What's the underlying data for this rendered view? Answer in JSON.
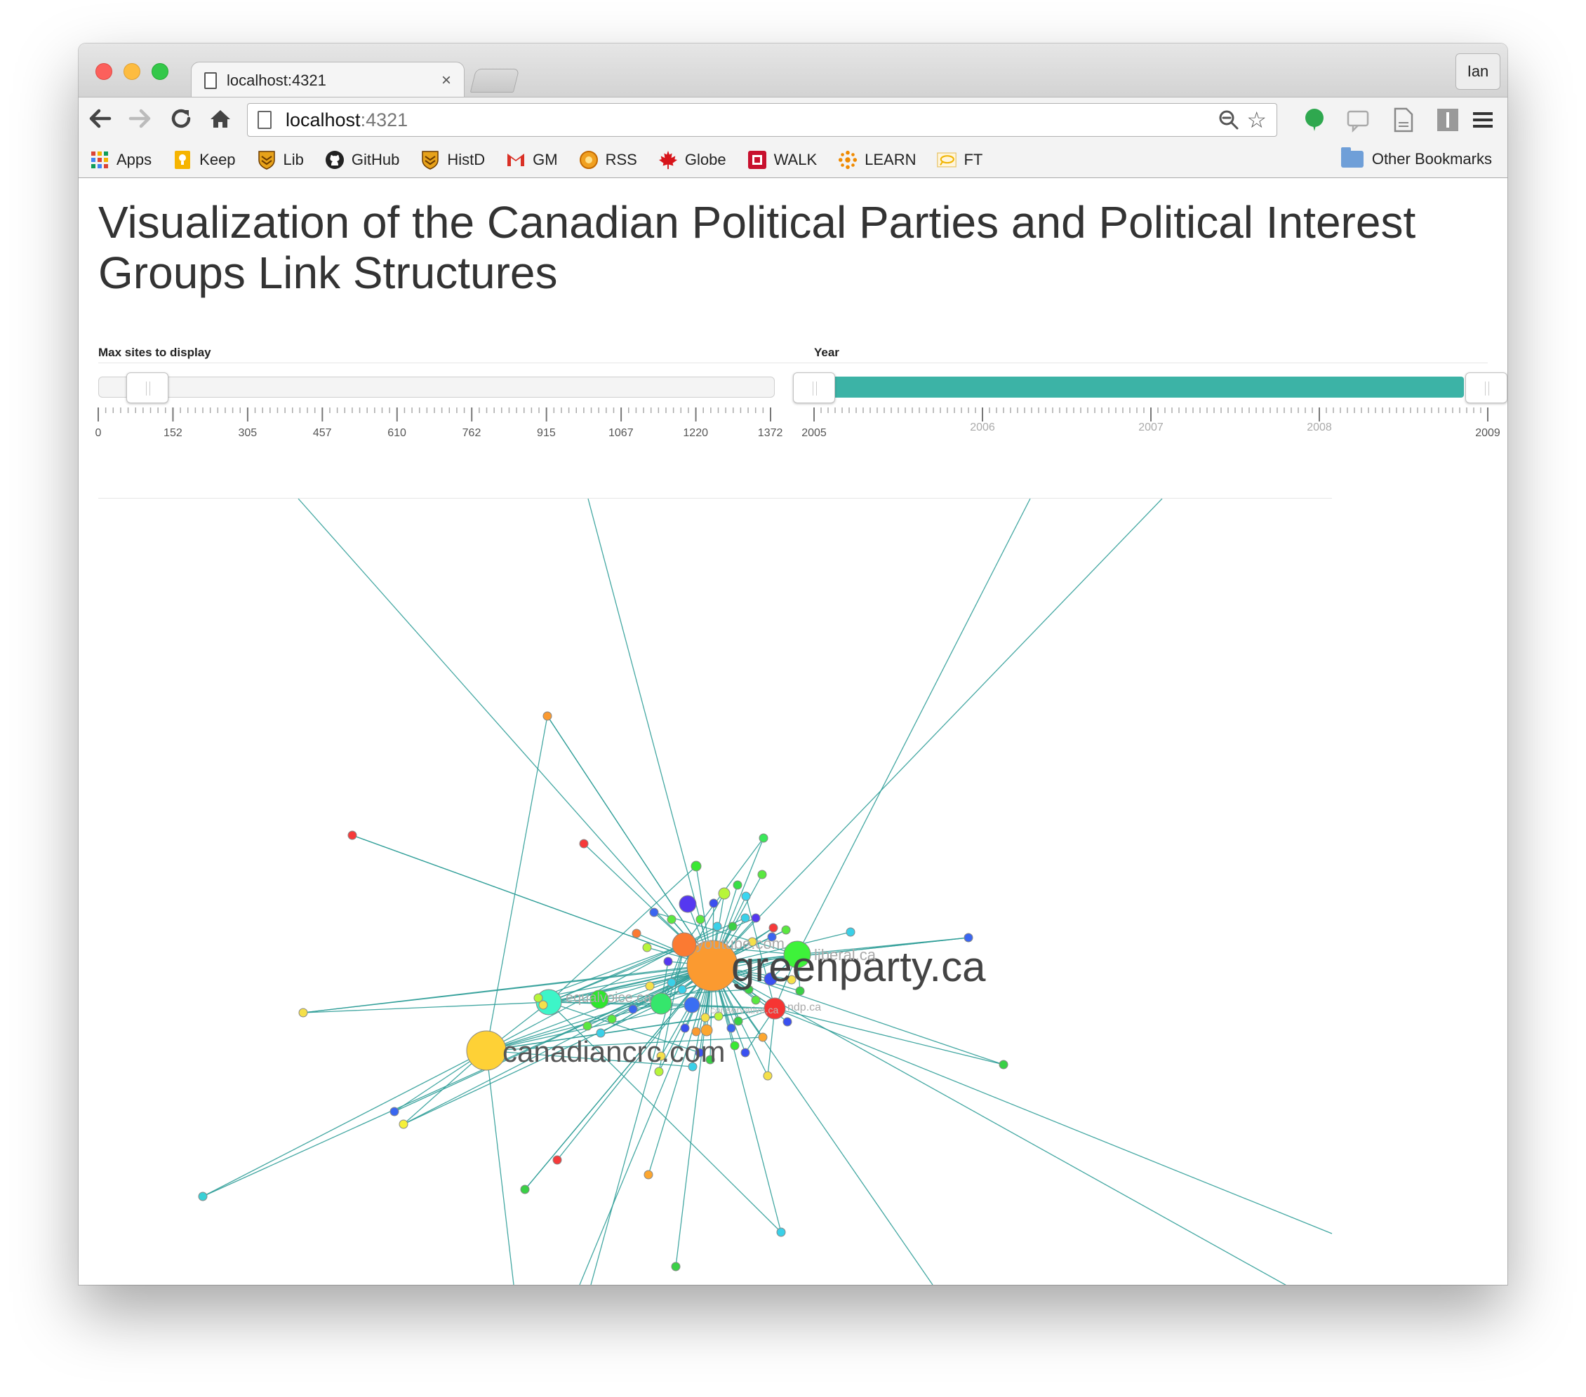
{
  "browser": {
    "tab_title": "localhost:4321",
    "tab_close": "×",
    "profile": "Ian",
    "url_host": "localhost",
    "url_port": ":4321",
    "bookmarks": [
      {
        "label": "Apps",
        "icon": "apps-grid-icon"
      },
      {
        "label": "Keep",
        "icon": "keep-bulb-icon"
      },
      {
        "label": "Lib",
        "icon": "shield-crest-icon"
      },
      {
        "label": "GitHub",
        "icon": "github-octocat-icon"
      },
      {
        "label": "HistD",
        "icon": "shield-crest-icon"
      },
      {
        "label": "GM",
        "icon": "gmail-icon"
      },
      {
        "label": "RSS",
        "icon": "rss-sun-icon"
      },
      {
        "label": "Globe",
        "icon": "maple-leaf-icon"
      },
      {
        "label": "WALK",
        "icon": "walk-square-icon"
      },
      {
        "label": "LEARN",
        "icon": "learn-dots-icon"
      },
      {
        "label": "FT",
        "icon": "ft-speech-icon"
      }
    ],
    "other_bookmarks": "Other Bookmarks"
  },
  "page": {
    "title": "Visualization of the Canadian Political Parties and Political Interest Groups Link Structures"
  },
  "sliders": {
    "max_sites": {
      "label": "Max sites to display",
      "min": 0,
      "max": 1372,
      "value": 76,
      "ticks": [
        "0",
        "152",
        "305",
        "457",
        "610",
        "762",
        "915",
        "1067",
        "1220",
        "1372"
      ]
    },
    "year": {
      "label": "Year",
      "min": 2005,
      "max": 2009,
      "range": [
        2005,
        2009
      ],
      "ticks": [
        "2005",
        "2006",
        "2007",
        "2008",
        "2009"
      ],
      "fill_color": "#3cb3a6"
    }
  },
  "graph": {
    "edge_color": "#2f9e98",
    "labels": {
      "greenparty": "greenparty.ca",
      "canadiancrc": "canadiancrc.com",
      "equalvoice": "equalvoice.ca",
      "youtube": "youtube.com",
      "liberal": "liberal.ca",
      "ndp": "ndp.ca",
      "conservative": "conservative.ca"
    }
  }
}
